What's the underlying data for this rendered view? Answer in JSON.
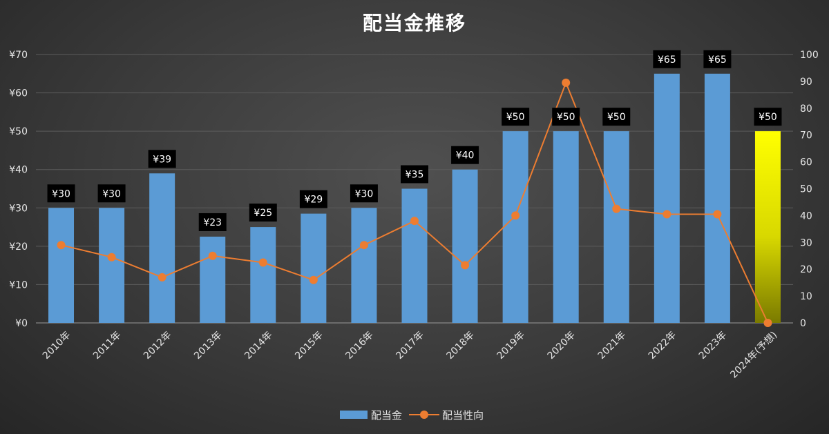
{
  "chart_data": {
    "type": "bar",
    "title": "配当金推移",
    "categories": [
      "2010年",
      "2011年",
      "2012年",
      "2013年",
      "2014年",
      "2015年",
      "2016年",
      "2017年",
      "2018年",
      "2019年",
      "2020年",
      "2021年",
      "2022年",
      "2023年",
      "2024年(予想)"
    ],
    "series": [
      {
        "name": "配当金",
        "type": "bar",
        "axis": "left",
        "color": "#5b9bd5",
        "highlight_color": "#ffff00",
        "highlight_index": 14,
        "values": [
          30,
          30,
          39,
          22.5,
          25,
          28.5,
          30,
          35,
          40,
          50,
          50,
          50,
          65,
          65,
          50
        ],
        "labels": [
          "¥30",
          "¥30",
          "¥39",
          "¥23",
          "¥25",
          "¥29",
          "¥30",
          "¥35",
          "¥40",
          "¥50",
          "¥50",
          "¥50",
          "¥65",
          "¥65",
          "¥50"
        ]
      },
      {
        "name": "配当性向",
        "type": "line",
        "axis": "right",
        "color": "#ed7d31",
        "values": [
          29,
          24.5,
          17,
          25,
          22.5,
          16,
          29,
          38,
          21.5,
          40,
          89.5,
          42.5,
          40.5,
          40.5,
          0
        ]
      }
    ],
    "y_left": {
      "ylim": [
        0,
        70
      ],
      "ticks": [
        0,
        10,
        20,
        30,
        40,
        50,
        60,
        70
      ],
      "tick_labels": [
        "¥0",
        "¥10",
        "¥20",
        "¥30",
        "¥40",
        "¥50",
        "¥60",
        "¥70"
      ]
    },
    "y_right": {
      "ylim": [
        0,
        100
      ],
      "ticks": [
        0,
        10,
        20,
        30,
        40,
        50,
        60,
        70,
        80,
        90,
        100
      ],
      "tick_labels": [
        "0",
        "10",
        "20",
        "30",
        "40",
        "50",
        "60",
        "70",
        "80",
        "90",
        "100"
      ]
    },
    "grid": true,
    "legend_position": "bottom"
  }
}
